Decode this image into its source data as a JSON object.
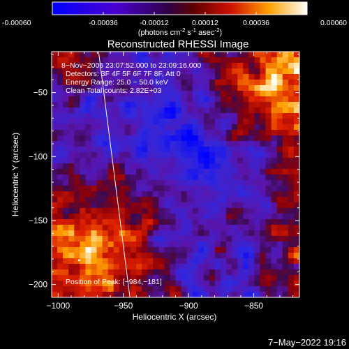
{
  "colorbar": {
    "ticks": [
      "-0.00060",
      "-0.00036",
      "-0.00012",
      "0.00012",
      "0.00036",
      "0.00060"
    ],
    "unit_pre": "(photons cm",
    "unit_e1": "-2",
    "unit_mid1": " s",
    "unit_e2": "-1",
    "unit_mid2": " asec",
    "unit_e3": "-2",
    "unit_post": ")"
  },
  "chart_data": {
    "type": "heatmap",
    "title": "Reconstructed RHESSI Image",
    "xlabel": "Heliocentric X (arcsec)",
    "ylabel": "Heliocentric Y (arcsec)",
    "xlim": [
      -1005,
      -815
    ],
    "ylim": [
      -210,
      -18
    ],
    "x_ticks": [
      -1000,
      -950,
      -900,
      -850
    ],
    "x_tick_labels": [
      "−1000",
      "−950",
      "−900",
      "−850"
    ],
    "y_ticks": [
      -50,
      -100,
      -150,
      -200
    ],
    "y_tick_labels": [
      "−50",
      "−100",
      "−150",
      "−200"
    ],
    "value_range": [
      -0.0006,
      0.0006
    ],
    "annotations": [
      "8−Nov−2006 23:07:52.000 to 23:09:16.000",
      "Detectors: 3F 4F 5F 6F 7F 8F, Att 0",
      "Energy Range: 25.0 − 50.0 keV",
      "Clean    Total counts: 2.82E+03"
    ],
    "peak_label": "Position of Peak: [−984,−181]",
    "peak": [
      -984,
      -181
    ],
    "limb_line": [
      [
        -969,
        -18
      ],
      [
        -945,
        -210
      ]
    ]
  },
  "timestamp": "7−May−2022 19:16"
}
